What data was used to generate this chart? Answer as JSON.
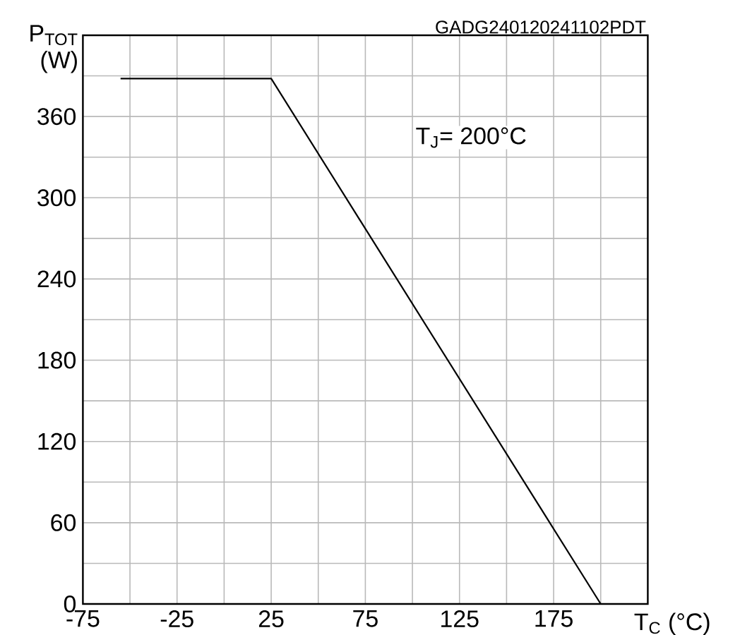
{
  "chart_data": {
    "type": "line",
    "xlabel": "T$_{C}$ (°C)",
    "ylabel": "P$_{TOT}$ (W)",
    "annotations": [
      "GADG240120241102PDT",
      "T$_{J}$= 200°C"
    ],
    "series": [
      {
        "color": "#000000",
        "x": [
          -55,
          25,
          200
        ],
        "values": [
          388,
          388,
          0
        ]
      }
    ],
    "xlim": [
      -75,
      225
    ],
    "ylim": [
      0,
      420
    ],
    "xticks": [
      -75,
      {
        "value": -50,
        "label": null
      },
      -25,
      {
        "value": 0,
        "label": null
      },
      25,
      {
        "value": 50,
        "label": null
      },
      75,
      {
        "value": 100,
        "label": null
      },
      125,
      {
        "value": 150,
        "label": null
      },
      175,
      {
        "value": 200,
        "label": null
      },
      {
        "value": 225,
        "label": null
      }
    ],
    "yticks": [
      0,
      {
        "value": 30,
        "label": null
      },
      60,
      {
        "value": 90,
        "label": null
      },
      120,
      {
        "value": 150,
        "label": null
      },
      180,
      {
        "value": 210,
        "label": null
      },
      240,
      {
        "value": 270,
        "label": null
      },
      300,
      {
        "value": 330,
        "label": null
      },
      360,
      {
        "value": 390,
        "label": null
      },
      {
        "value": 420,
        "label": null
      }
    ],
    "grid": true,
    "marker": "none",
    "line_style": "solid"
  }
}
